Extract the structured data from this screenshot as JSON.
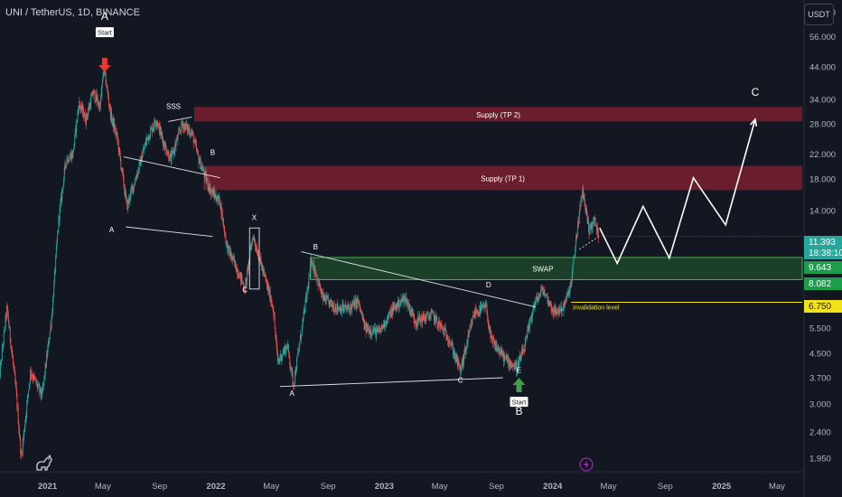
{
  "header": {
    "symbol_title": "UNI / TetherUS, 1D, BINANCE",
    "currency_button": "USDT"
  },
  "price_axis": {
    "labels": [
      "68.000",
      "56.000",
      "44.000",
      "34.000",
      "28.000",
      "22.000",
      "18.000",
      "14.000",
      "5.500",
      "4.500",
      "3.700",
      "3.000",
      "2.400",
      "1.950"
    ],
    "label_values": [
      68,
      56,
      44,
      34,
      28,
      22,
      18,
      14,
      5.5,
      4.5,
      3.7,
      3.0,
      2.4,
      1.95
    ]
  },
  "time_axis": {
    "labels": [
      "2021",
      "May",
      "Sep",
      "2022",
      "May",
      "Sep",
      "2023",
      "May",
      "Sep",
      "2024",
      "May",
      "Sep",
      "2025",
      "May"
    ],
    "dates": [
      "2021-01-01",
      "2021-05-01",
      "2021-09-01",
      "2022-01-01",
      "2022-05-01",
      "2022-09-01",
      "2023-01-01",
      "2023-05-01",
      "2023-09-01",
      "2024-01-01",
      "2024-05-01",
      "2024-09-01",
      "2025-01-01",
      "2025-05-01"
    ]
  },
  "price_tags": {
    "current_price": "11.393",
    "countdown": "18:38:10",
    "swap_top": "9.643",
    "swap_bottom": "8.082",
    "invalidation": "6.750"
  },
  "colors": {
    "background": "#131722",
    "up_candle": "#26a69a",
    "down_candle": "#ef5350",
    "supply_zone": "#7a1f2f",
    "swap_zone": "#1f4d2b",
    "swap_border": "#4caf50",
    "invalidation_line": "#f2e219",
    "start_arrow_a": "#e53935",
    "start_arrow_b": "#43a047"
  },
  "chart_data": {
    "type": "candlestick",
    "symbol": "UNI / TetherUS",
    "interval": "1D",
    "exchange": "BINANCE",
    "y_scale": "log",
    "ylim": [
      1.75,
      75
    ],
    "xlim": [
      "2020-09-20",
      "2025-06-25"
    ],
    "price_path": [
      {
        "date": "2020-09-17",
        "price": 3.5
      },
      {
        "date": "2020-10-05",
        "price": 6.5
      },
      {
        "date": "2020-10-25",
        "price": 3.3
      },
      {
        "date": "2020-11-05",
        "price": 1.95
      },
      {
        "date": "2020-11-25",
        "price": 3.9
      },
      {
        "date": "2020-12-20",
        "price": 3.2
      },
      {
        "date": "2021-01-10",
        "price": 6
      },
      {
        "date": "2021-01-25",
        "price": 13
      },
      {
        "date": "2021-02-10",
        "price": 21
      },
      {
        "date": "2021-02-25",
        "price": 22
      },
      {
        "date": "2021-03-10",
        "price": 33
      },
      {
        "date": "2021-03-25",
        "price": 29
      },
      {
        "date": "2021-04-10",
        "price": 36
      },
      {
        "date": "2021-04-25",
        "price": 32
      },
      {
        "date": "2021-05-03",
        "price": 44
      },
      {
        "date": "2021-05-18",
        "price": 30
      },
      {
        "date": "2021-06-01",
        "price": 25
      },
      {
        "date": "2021-06-22",
        "price": 14.5
      },
      {
        "date": "2021-07-15",
        "price": 19
      },
      {
        "date": "2021-08-05",
        "price": 25
      },
      {
        "date": "2021-08-25",
        "price": 29
      },
      {
        "date": "2021-09-10",
        "price": 24
      },
      {
        "date": "2021-09-25",
        "price": 21
      },
      {
        "date": "2021-10-20",
        "price": 28
      },
      {
        "date": "2021-11-10",
        "price": 26
      },
      {
        "date": "2021-11-25",
        "price": 21
      },
      {
        "date": "2021-12-20",
        "price": 16.5
      },
      {
        "date": "2022-01-10",
        "price": 15
      },
      {
        "date": "2022-01-25",
        "price": 10.5
      },
      {
        "date": "2022-02-20",
        "price": 8.5
      },
      {
        "date": "2022-03-05",
        "price": 7.5
      },
      {
        "date": "2022-03-22",
        "price": 11.5
      },
      {
        "date": "2022-04-10",
        "price": 9
      },
      {
        "date": "2022-05-05",
        "price": 6.5
      },
      {
        "date": "2022-05-15",
        "price": 4.2
      },
      {
        "date": "2022-06-05",
        "price": 4.8
      },
      {
        "date": "2022-06-18",
        "price": 3.5
      },
      {
        "date": "2022-07-10",
        "price": 6
      },
      {
        "date": "2022-07-28",
        "price": 9.5
      },
      {
        "date": "2022-08-20",
        "price": 7
      },
      {
        "date": "2022-09-15",
        "price": 6.5
      },
      {
        "date": "2022-10-15",
        "price": 6.4
      },
      {
        "date": "2022-11-05",
        "price": 6.8
      },
      {
        "date": "2022-11-20",
        "price": 5.5
      },
      {
        "date": "2022-12-20",
        "price": 5.3
      },
      {
        "date": "2023-01-20",
        "price": 6.4
      },
      {
        "date": "2023-02-15",
        "price": 7
      },
      {
        "date": "2023-03-10",
        "price": 5.8
      },
      {
        "date": "2023-04-15",
        "price": 6.1
      },
      {
        "date": "2023-05-20",
        "price": 5.1
      },
      {
        "date": "2023-06-15",
        "price": 3.9
      },
      {
        "date": "2023-07-15",
        "price": 6.2
      },
      {
        "date": "2023-08-10",
        "price": 6.5
      },
      {
        "date": "2023-08-20",
        "price": 5
      },
      {
        "date": "2023-09-20",
        "price": 4.3
      },
      {
        "date": "2023-10-15",
        "price": 4
      },
      {
        "date": "2023-11-01",
        "price": 4.7
      },
      {
        "date": "2023-11-20",
        "price": 6.5
      },
      {
        "date": "2023-12-10",
        "price": 7.5
      },
      {
        "date": "2024-01-05",
        "price": 6.2
      },
      {
        "date": "2024-01-25",
        "price": 6.5
      },
      {
        "date": "2024-02-10",
        "price": 7.8
      },
      {
        "date": "2024-02-23",
        "price": 12
      },
      {
        "date": "2024-03-06",
        "price": 16.5
      },
      {
        "date": "2024-03-20",
        "price": 12
      },
      {
        "date": "2024-04-01",
        "price": 13
      },
      {
        "date": "2024-04-09",
        "price": 11.4
      }
    ],
    "zones": [
      {
        "label": "Supply (TP 2)",
        "from": 28.5,
        "to": 32,
        "x_start": "2021-11-15"
      },
      {
        "label": "Supply (TP 1)",
        "from": 16.5,
        "to": 20,
        "x_start": "2021-12-05"
      },
      {
        "label": "SWAP",
        "from": 8.082,
        "to": 9.643,
        "x_start": "2022-07-25"
      }
    ],
    "invalidation": {
      "label": "invalidation level",
      "price": 6.75,
      "x_start": "2024-02-10"
    },
    "projection": [
      {
        "date": "2024-04-12",
        "price": 12.2
      },
      {
        "date": "2024-05-20",
        "price": 9.2
      },
      {
        "date": "2024-07-15",
        "price": 14.5
      },
      {
        "date": "2024-09-10",
        "price": 9.6
      },
      {
        "date": "2024-11-01",
        "price": 18.2
      },
      {
        "date": "2025-01-10",
        "price": 12.5
      },
      {
        "date": "2025-03-15",
        "price": 29
      }
    ],
    "annotations": [
      {
        "text": "A",
        "kind": "wave-major",
        "date": "2021-05-05",
        "price": 64
      },
      {
        "text": "Start",
        "kind": "start-badge",
        "date": "2021-05-05",
        "price": 57
      },
      {
        "text": "SSS",
        "kind": "label",
        "date": "2021-10-01",
        "price": 31.5
      },
      {
        "text": "A",
        "kind": "wave-minor",
        "date": "2021-05-20",
        "price": 11.8
      },
      {
        "text": "B",
        "kind": "wave-minor",
        "date": "2021-12-25",
        "price": 21.8
      },
      {
        "text": "X",
        "kind": "wave-minor",
        "date": "2022-03-25",
        "price": 13
      },
      {
        "text": "C",
        "kind": "wave-minor",
        "date": "2022-03-05",
        "price": 7.3
      },
      {
        "text": "B",
        "kind": "wave-minor",
        "date": "2022-08-05",
        "price": 10.3
      },
      {
        "text": "A",
        "kind": "wave-minor",
        "date": "2022-06-15",
        "price": 3.2
      },
      {
        "text": "C",
        "kind": "wave-minor",
        "date": "2023-06-15",
        "price": 3.55
      },
      {
        "text": "D",
        "kind": "wave-minor",
        "date": "2023-08-15",
        "price": 7.6
      },
      {
        "text": "E",
        "kind": "wave-minor",
        "date": "2023-10-20",
        "price": 3.85
      },
      {
        "text": "Start",
        "kind": "start-badge",
        "date": "2023-10-20",
        "price": 3.0
      },
      {
        "text": "B",
        "kind": "wave-major",
        "date": "2023-10-20",
        "price": 2.75
      },
      {
        "text": "C",
        "kind": "wave-major",
        "date": "2025-03-15",
        "price": 35
      }
    ]
  }
}
